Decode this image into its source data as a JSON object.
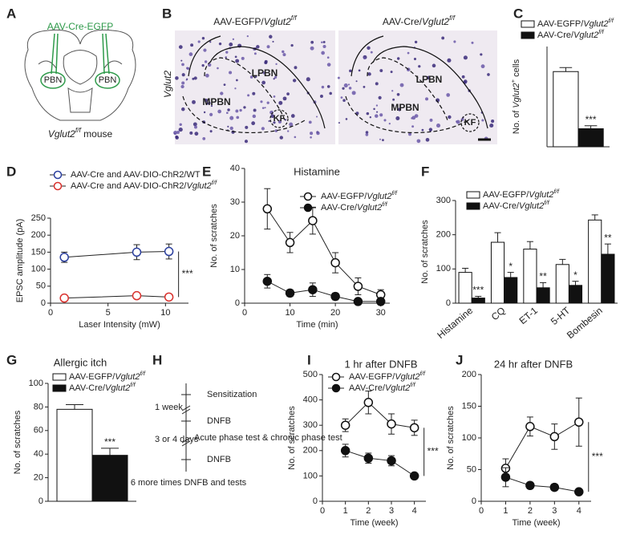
{
  "panel_a": {
    "label": "A",
    "vector": "AAV-Cre-EGFP",
    "left": "PBN",
    "right": "PBN",
    "caption": "Vglut2f/f mouse"
  },
  "panel_b": {
    "label": "B",
    "left_title": "AAV-EGFP/Vglut2f/f",
    "right_title": "AAV-Cre/Vglut2f/f",
    "stain": "Vglut2",
    "left_regions": [
      "LPBN",
      "MPBN",
      "KF"
    ],
    "right_regions": [
      "LPBN",
      "MPBN",
      "KF"
    ]
  },
  "panel_h": {
    "label": "H",
    "steps": [
      "Sensitization",
      "DNFB",
      "Acute phase test & chronic phase test",
      "DNFB",
      "6 more times DNFB and tests"
    ],
    "intervals": [
      "1 week",
      "3 or 4 days"
    ]
  },
  "chart_data": [
    {
      "label": "C",
      "type": "bar",
      "ylabel": "No. of Vglut2+ cells",
      "ylim": [
        0,
        500
      ],
      "legend": true,
      "series": [
        {
          "name": "AAV-EGFP/Vglut2f/f",
          "color": "#ffffff",
          "values": [
            375
          ],
          "errors": [
            20
          ]
        },
        {
          "name": "AAV-Cre/Vglut2f/f",
          "color": "#111111",
          "values": [
            90
          ],
          "errors": [
            15
          ]
        }
      ],
      "significance": [
        "***"
      ]
    },
    {
      "label": "D",
      "type": "line",
      "xlabel": "Laser Intensity (mW)",
      "ylabel": "EPSC amplitude (pA)",
      "x": [
        1.2,
        7.5,
        10.3
      ],
      "xlim": [
        0,
        12
      ],
      "xticks": [
        0,
        5,
        10
      ],
      "ylim": [
        0,
        250
      ],
      "yticks": [
        0,
        50,
        100,
        150,
        200,
        250
      ],
      "legend": true,
      "series": [
        {
          "name": "AAV-Cre and AAV-DIO-ChR2/WT",
          "color": "#2b3f9e",
          "fill": "#ffffff",
          "values": [
            135,
            150,
            152
          ],
          "errors": [
            15,
            22,
            22
          ]
        },
        {
          "name": "AAV-Cre and AAV-DIO-ChR2/Vglut2f/f",
          "color": "#d9302c",
          "fill": "#ffffff",
          "values": [
            15,
            22,
            18
          ],
          "errors": [
            3,
            4,
            3
          ]
        }
      ],
      "significance": [
        "***"
      ]
    },
    {
      "label": "E",
      "type": "line",
      "title": "Histamine",
      "xlabel": "Time (min)",
      "ylabel": "No. of scratches",
      "x": [
        5,
        10,
        15,
        20,
        25,
        30
      ],
      "xlim": [
        0,
        32
      ],
      "xticks": [
        0,
        10,
        20,
        30
      ],
      "ylim": [
        0,
        40
      ],
      "yticks": [
        0,
        10,
        20,
        30,
        40
      ],
      "legend": true,
      "series": [
        {
          "name": "AAV-EGFP/Vglut2f/f",
          "color": "#111111",
          "fill": "#ffffff",
          "values": [
            28,
            18,
            24.5,
            12,
            5,
            2.5
          ],
          "errors": [
            6,
            3,
            4,
            3,
            2.5,
            1.5
          ]
        },
        {
          "name": "AAV-Cre/Vglut2f/f",
          "color": "#111111",
          "fill": "#111111",
          "values": [
            6.5,
            3,
            4,
            2,
            0.5,
            0.5
          ],
          "errors": [
            2,
            1,
            2,
            1,
            0.5,
            0.3
          ]
        }
      ]
    },
    {
      "label": "F",
      "type": "bar",
      "ylabel": "No. of scratches",
      "categories": [
        "Histamine",
        "CQ",
        "ET-1",
        "5-HT",
        "Bombesin"
      ],
      "ylim": [
        0,
        300
      ],
      "yticks": [
        0,
        100,
        200,
        300
      ],
      "legend": true,
      "series": [
        {
          "name": "AAV-EGFP/Vglut2f/f",
          "color": "#ffffff",
          "values": [
            90,
            178,
            158,
            113,
            243
          ],
          "errors": [
            12,
            28,
            22,
            15,
            15
          ]
        },
        {
          "name": "AAV-Cre/Vglut2f/f",
          "color": "#111111",
          "values": [
            15,
            75,
            45,
            52,
            143
          ],
          "errors": [
            5,
            15,
            15,
            12,
            30
          ]
        }
      ],
      "significance": [
        "***",
        "*",
        "**",
        "*",
        "**"
      ]
    },
    {
      "label": "G",
      "type": "bar",
      "title": "Allergic itch",
      "ylabel": "No. of scratches",
      "ylim": [
        0,
        100
      ],
      "yticks": [
        0,
        20,
        40,
        60,
        80,
        100
      ],
      "legend": true,
      "series": [
        {
          "name": "AAV-EGFP/Vglut2f/f",
          "color": "#ffffff",
          "values": [
            78
          ],
          "errors": [
            4
          ]
        },
        {
          "name": "AAV-Cre/Vglut2f/f",
          "color": "#111111",
          "values": [
            39
          ],
          "errors": [
            6
          ]
        }
      ],
      "significance": [
        "***"
      ]
    },
    {
      "label": "I",
      "type": "line",
      "title": "1 hr after DNFB",
      "xlabel": "Time (week)",
      "ylabel": "No. of scratches",
      "x": [
        1,
        2,
        3,
        4
      ],
      "xlim": [
        0,
        4.5
      ],
      "xticks": [
        0,
        1,
        2,
        3,
        4
      ],
      "ylim": [
        0,
        500
      ],
      "yticks": [
        0,
        100,
        200,
        300,
        400,
        500
      ],
      "legend": true,
      "series": [
        {
          "name": "AAV-EGFP/Vglut2f/f",
          "color": "#111111",
          "fill": "#ffffff",
          "values": [
            300,
            390,
            305,
            290
          ],
          "errors": [
            25,
            45,
            40,
            30
          ]
        },
        {
          "name": "AAV-Cre/Vglut2f/f",
          "color": "#111111",
          "fill": "#111111",
          "values": [
            200,
            170,
            160,
            100
          ],
          "errors": [
            25,
            20,
            20,
            8
          ]
        }
      ],
      "significance": [
        "***"
      ]
    },
    {
      "label": "J",
      "type": "line",
      "title": "24 hr after DNFB",
      "xlabel": "Time (week)",
      "ylabel": "No. of scratches",
      "x": [
        1,
        2,
        3,
        4
      ],
      "xlim": [
        0,
        4.5
      ],
      "xticks": [
        0,
        1,
        2,
        3,
        4
      ],
      "ylim": [
        0,
        200
      ],
      "yticks": [
        0,
        50,
        100,
        150,
        200
      ],
      "legend": false,
      "series": [
        {
          "color": "#111111",
          "fill": "#ffffff",
          "values": [
            52,
            118,
            102,
            125
          ],
          "errors": [
            15,
            15,
            20,
            38
          ]
        },
        {
          "color": "#111111",
          "fill": "#111111",
          "values": [
            38,
            25,
            22,
            15
          ],
          "errors": [
            15,
            5,
            5,
            3
          ]
        }
      ],
      "significance": [
        "***"
      ]
    }
  ]
}
